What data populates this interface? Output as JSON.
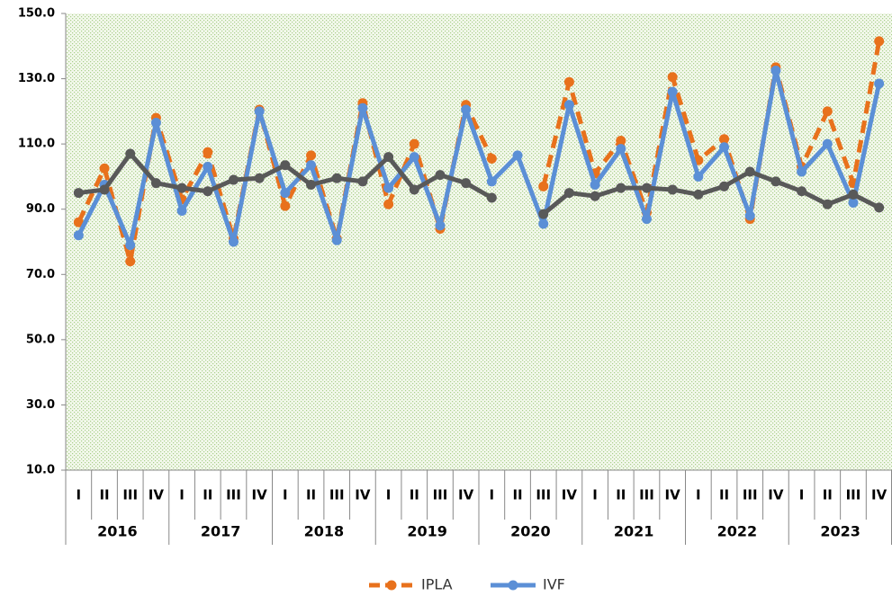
{
  "chart_data": {
    "type": "line",
    "categories": [
      "I",
      "II",
      "III",
      "IV",
      "I",
      "II",
      "III",
      "IV",
      "I",
      "II",
      "III",
      "IV",
      "I",
      "II",
      "III",
      "IV",
      "I",
      "II",
      "III",
      "IV",
      "I",
      "II",
      "III",
      "IV",
      "I",
      "II",
      "III",
      "IV",
      "I",
      "II",
      "III",
      "IV"
    ],
    "years": [
      "2016",
      "2017",
      "2018",
      "2019",
      "2020",
      "2021",
      "2022",
      "2023"
    ],
    "ylim": [
      10,
      150
    ],
    "yticks": [
      {
        "value": 10,
        "label": "10.0"
      },
      {
        "value": 30,
        "label": "30.0"
      },
      {
        "value": 50,
        "label": "50.0"
      },
      {
        "value": 70,
        "label": "70.0"
      },
      {
        "value": 90,
        "label": "90.0"
      },
      {
        "value": 110,
        "label": "110.0"
      },
      {
        "value": 130,
        "label": "130.0"
      },
      {
        "value": 150,
        "label": "150.0"
      }
    ],
    "series": [
      {
        "name": "IPLA",
        "color": "#e8711c",
        "dashed": true,
        "values": [
          86,
          102.5,
          74,
          118,
          93,
          107.5,
          81,
          120.5,
          91,
          106.5,
          81,
          122.5,
          91.5,
          110,
          84,
          122,
          105.5,
          null,
          97,
          129,
          101,
          111,
          89,
          130.5,
          105,
          111.5,
          87,
          133.5,
          103,
          120,
          98,
          141.5
        ]
      },
      {
        "name": "IVF",
        "color": "#5b8fd6",
        "values": [
          82,
          97.5,
          79,
          116.5,
          89.5,
          103,
          80,
          120,
          95,
          103.5,
          80.5,
          121,
          96.5,
          106,
          85,
          120.5,
          98.5,
          106.5,
          85.5,
          122,
          97.5,
          108.5,
          87,
          126,
          100,
          109,
          88,
          132.5,
          101.5,
          110,
          92,
          128.5
        ]
      },
      {
        "color": "#595959",
        "values": [
          95,
          96,
          107,
          98,
          96.5,
          95.5,
          99,
          99.5,
          103.5,
          97.5,
          99.5,
          98.5,
          106,
          96,
          100.5,
          98,
          93.5,
          null,
          88.5,
          95,
          94,
          96.5,
          96.5,
          96,
          94.5,
          97,
          101.5,
          98.5,
          95.5,
          91.5,
          94.5,
          90.5
        ]
      }
    ]
  }
}
